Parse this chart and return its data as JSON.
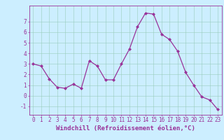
{
  "x": [
    0,
    1,
    2,
    3,
    4,
    5,
    6,
    7,
    8,
    9,
    10,
    11,
    12,
    13,
    14,
    15,
    16,
    17,
    18,
    19,
    20,
    21,
    22,
    23
  ],
  "y": [
    3.0,
    2.8,
    1.6,
    0.8,
    0.7,
    1.1,
    0.7,
    3.3,
    2.8,
    1.5,
    1.5,
    3.0,
    4.4,
    6.5,
    7.8,
    7.7,
    5.8,
    5.3,
    4.2,
    2.2,
    1.0,
    -0.1,
    -0.4,
    -1.3
  ],
  "line_color": "#993399",
  "marker": "D",
  "marker_size": 2.0,
  "bg_color": "#cceeff",
  "grid_color": "#99ccbb",
  "axis_color": "#993399",
  "xlabel": "Windchill (Refroidissement éolien,°C)",
  "ylim": [
    -1.8,
    8.5
  ],
  "xlim": [
    -0.5,
    23.5
  ],
  "yticks": [
    -1,
    0,
    1,
    2,
    3,
    4,
    5,
    6,
    7
  ],
  "xticks": [
    0,
    1,
    2,
    3,
    4,
    5,
    6,
    7,
    8,
    9,
    10,
    11,
    12,
    13,
    14,
    15,
    16,
    17,
    18,
    19,
    20,
    21,
    22,
    23
  ],
  "tick_label_size": 5.5,
  "xlabel_size": 6.5
}
